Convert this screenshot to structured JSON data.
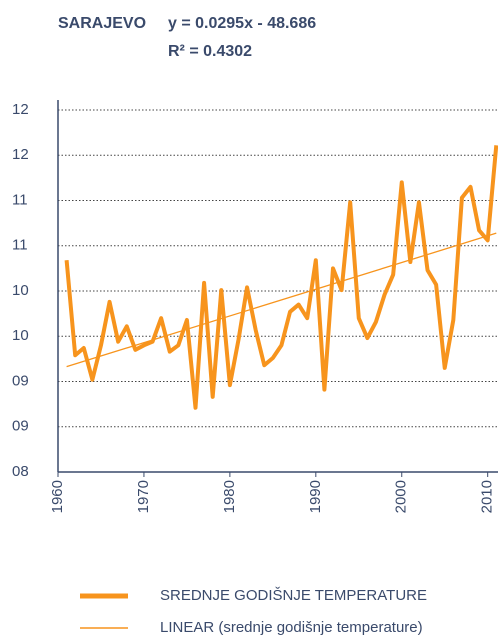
{
  "chart_data": {
    "type": "line",
    "title": "SARAJEVO",
    "annotations": [
      "y = 0.0295x - 48.686",
      "R² = 0.4302"
    ],
    "x": [
      1961,
      1962,
      1963,
      1964,
      1965,
      1966,
      1967,
      1968,
      1969,
      1970,
      1971,
      1972,
      1973,
      1974,
      1975,
      1976,
      1977,
      1978,
      1979,
      1980,
      1981,
      1982,
      1983,
      1984,
      1985,
      1986,
      1987,
      1988,
      1989,
      1990,
      1991,
      1992,
      1993,
      1994,
      1995,
      1996,
      1997,
      1998,
      1999,
      2000,
      2001,
      2002,
      2003,
      2004,
      2005,
      2006,
      2007,
      2008,
      2009,
      2010,
      2011
    ],
    "series": [
      {
        "name": "SREDNJE GODIŠNJE TEMPERATURE",
        "color": "#f7941d",
        "values": [
          10.34,
          9.29,
          9.37,
          9.02,
          9.4,
          9.88,
          9.44,
          9.61,
          9.35,
          9.4,
          9.44,
          9.7,
          9.33,
          9.4,
          9.68,
          8.71,
          10.09,
          8.83,
          10.01,
          8.96,
          9.46,
          10.04,
          9.57,
          9.18,
          9.26,
          9.4,
          9.77,
          9.85,
          9.7,
          10.34,
          8.91,
          10.25,
          10.01,
          10.98,
          9.7,
          9.48,
          9.66,
          9.96,
          10.18,
          11.2,
          10.32,
          10.98,
          10.23,
          10.07,
          9.15,
          9.68,
          11.03,
          11.15,
          10.67,
          10.56,
          11.61
        ]
      },
      {
        "name": "LINEAR (srednje godišnje temperature)",
        "color": "#f7941d",
        "x": [
          1961,
          2011
        ],
        "values": [
          9.164,
          10.639
        ]
      }
    ],
    "xlim": [
      1960,
      2011.2
    ],
    "xticks": [
      1960,
      1970,
      1980,
      1990,
      2000,
      2010
    ],
    "ylim": [
      8,
      12
    ],
    "yticks": [
      {
        "value": 8,
        "label": "08"
      },
      {
        "value": 8.5,
        "label": "09"
      },
      {
        "value": 9,
        "label": "09"
      },
      {
        "value": 9.5,
        "label": "10"
      },
      {
        "value": 10,
        "label": "10"
      },
      {
        "value": 10.5,
        "label": "11"
      },
      {
        "value": 11,
        "label": "11"
      },
      {
        "value": 11.5,
        "label": "12"
      },
      {
        "value": 12,
        "label": "12"
      }
    ],
    "grid": true
  }
}
